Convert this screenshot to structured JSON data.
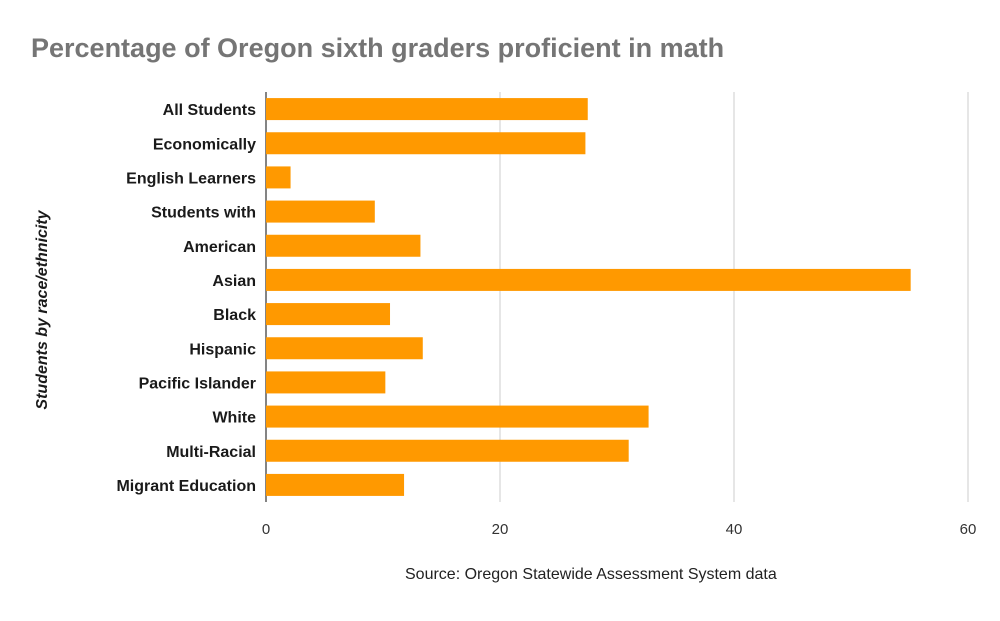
{
  "chart_data": {
    "type": "bar",
    "orientation": "horizontal",
    "title": "Percentage of Oregon sixth graders proficient in math",
    "xlabel": "",
    "ylabel": "Students by race/ethnicity",
    "categories": [
      "All Students",
      "Economically",
      "English Learners",
      "Students with",
      "American",
      "Asian",
      "Black",
      "Hispanic",
      "Pacific Islander",
      "White",
      "Multi-Racial",
      "Migrant Education"
    ],
    "values": [
      27.5,
      27.3,
      2.1,
      9.3,
      13.2,
      55.1,
      10.6,
      13.4,
      10.2,
      32.7,
      31.0,
      11.8
    ],
    "xlim": [
      0,
      60
    ],
    "xticks": [
      0,
      20,
      40,
      60
    ],
    "grid": true,
    "legend": "none",
    "bar_color": "#ff9900",
    "source": "Source: Oregon Statewide Assessment System data"
  }
}
